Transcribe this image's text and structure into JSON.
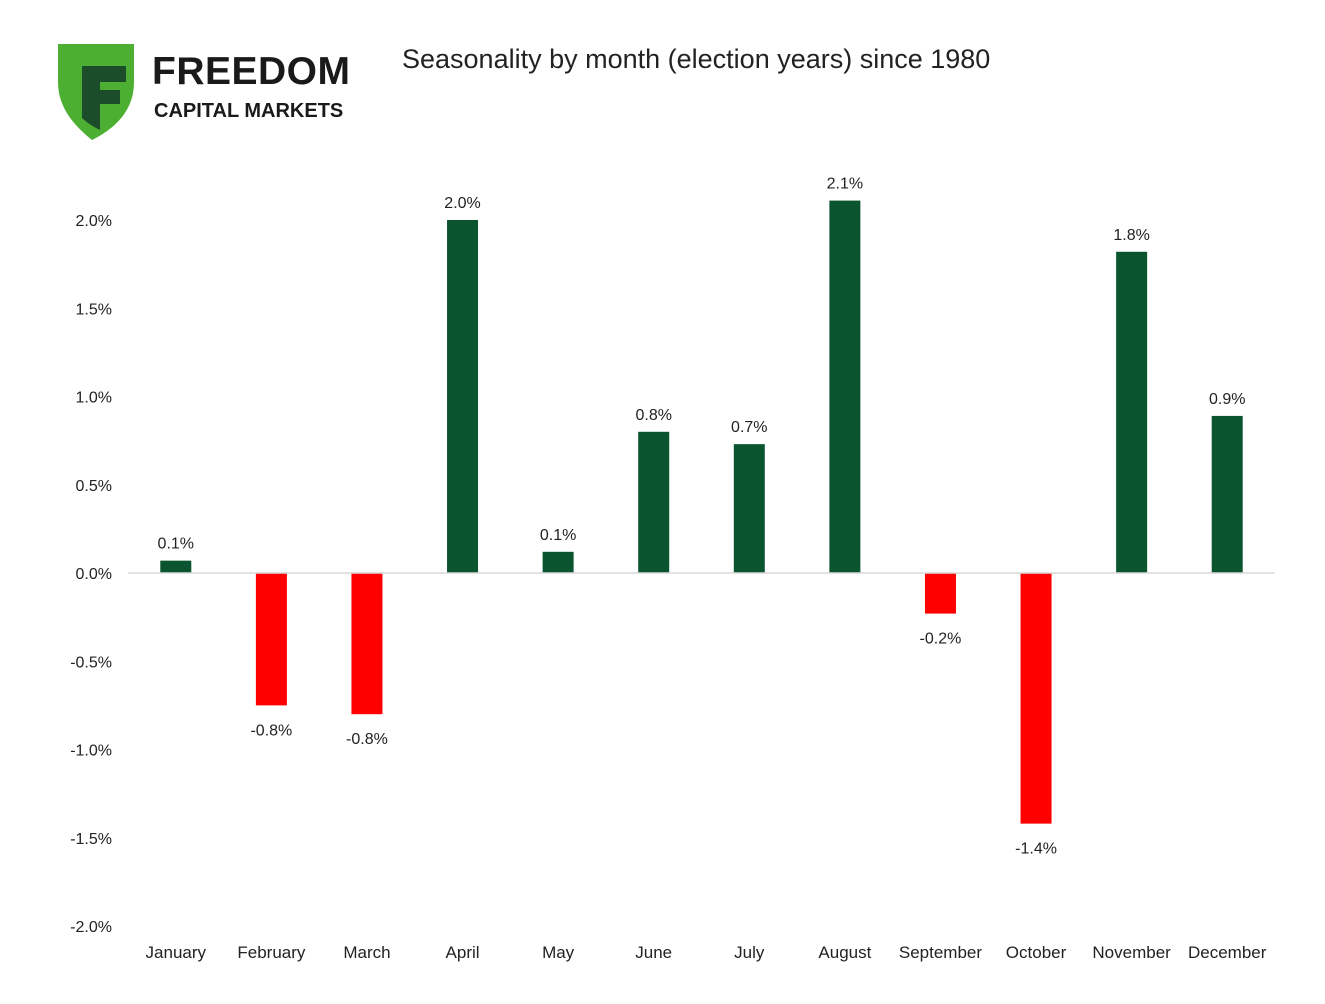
{
  "brand": {
    "name": "FREEDOM",
    "subtitle": "CAPITAL MARKETS",
    "shield_color": "#4caf32",
    "mark_color": "#1b4d2a",
    "icon": "shield-f-logo-icon"
  },
  "chart_data": {
    "type": "bar",
    "title": "Seasonality by month (election years) since 1980",
    "categories": [
      "January",
      "February",
      "March",
      "April",
      "May",
      "June",
      "July",
      "August",
      "September",
      "October",
      "November",
      "December"
    ],
    "values": [
      0.07,
      -0.75,
      -0.8,
      2.0,
      0.12,
      0.8,
      0.73,
      2.11,
      -0.23,
      -1.42,
      1.82,
      0.89
    ],
    "data_labels": [
      "0.1%",
      "-0.8%",
      "-0.8%",
      "2.0%",
      "0.1%",
      "0.8%",
      "0.7%",
      "2.1%",
      "-0.2%",
      "-1.4%",
      "1.8%",
      "0.9%"
    ],
    "y_ticks": [
      2.0,
      1.5,
      1.0,
      0.5,
      0.0,
      -0.5,
      -1.0,
      -1.5,
      -2.0
    ],
    "y_tick_labels": [
      "2.0%",
      "1.5%",
      "1.0%",
      "0.5%",
      "0.0%",
      "-0.5%",
      "-1.0%",
      "-1.5%",
      "-2.0%"
    ],
    "ylim": [
      -2.0,
      2.0
    ],
    "xlabel": "",
    "ylabel": "",
    "grid": false,
    "legend": "none",
    "colors": {
      "positive": "#0a5430",
      "negative": "#ff0000",
      "axis": "#d9d9d9"
    }
  }
}
